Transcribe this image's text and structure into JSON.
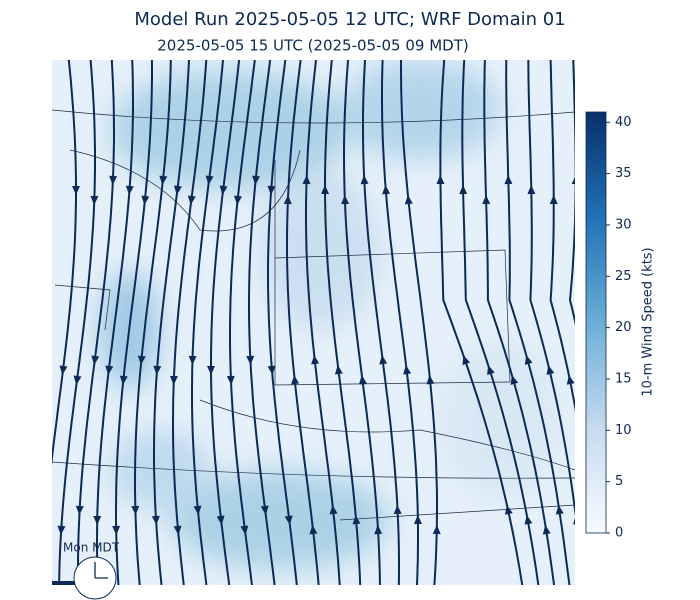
{
  "title": "Model Run 2025-05-05 12 UTC; WRF Domain 01",
  "subtitle": "2025-05-05 15 UTC  (2025-05-05 09 MDT)",
  "colorbar": {
    "label": "10-m Wind Speed (kts)",
    "range": [
      0,
      41
    ],
    "ticks": [
      0,
      5,
      10,
      15,
      20,
      25,
      30,
      35,
      40
    ]
  },
  "clock": {
    "label": "Mon MDT"
  }
}
